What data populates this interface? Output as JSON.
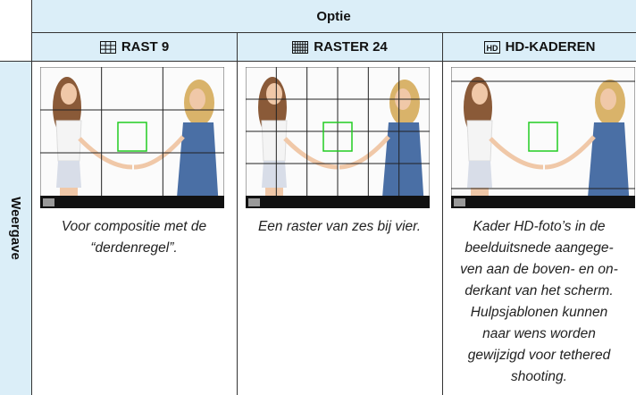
{
  "header": {
    "title": "Optie"
  },
  "row_header": "Weergave",
  "columns": [
    {
      "label": "RAST 9",
      "description_lines": [
        "Voor compositie met de",
        "“derdenregel”."
      ]
    },
    {
      "label": "RASTER 24",
      "description_lines": [
        "Een raster van zes bij vier."
      ]
    },
    {
      "label": "HD-KADEREN",
      "icon_text": "HD",
      "description_lines": [
        "Kader HD-foto’s in de",
        "beelduitsnede aangege-",
        "ven aan de boven- en on-",
        "derkant van het scherm.",
        "Hulpsjablonen kunnen",
        "naar wens worden",
        "gewijzigd voor tethered",
        "shooting."
      ]
    }
  ]
}
